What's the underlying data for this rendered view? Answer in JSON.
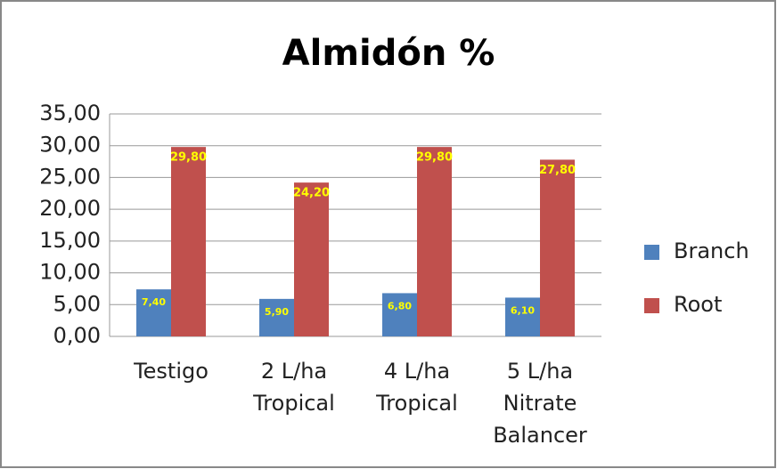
{
  "chart_data": {
    "type": "bar",
    "title": "Almidón %",
    "categories": [
      [
        "Testigo"
      ],
      [
        "2 L/ha",
        "Tropical"
      ],
      [
        "4 L/ha",
        "Tropical"
      ],
      [
        "5 L/ha",
        "Nitrate",
        "Balancer"
      ]
    ],
    "series": [
      {
        "name": "Branch",
        "color": "#4f81bd",
        "values": [
          7.4,
          5.9,
          6.8,
          6.1
        ],
        "value_labels": [
          "7,40",
          "5,90",
          "6,80",
          "6,10"
        ]
      },
      {
        "name": "Root",
        "color": "#c0504d",
        "values": [
          29.8,
          24.2,
          29.8,
          27.8
        ],
        "value_labels": [
          "29,80",
          "24,20",
          "29,80",
          "27,80"
        ]
      }
    ],
    "ylim": [
      0,
      35
    ],
    "yticks": [
      {
        "value": 0,
        "label": "0,00"
      },
      {
        "value": 5,
        "label": "5,00"
      },
      {
        "value": 10,
        "label": "10,00"
      },
      {
        "value": 15,
        "label": "15,00"
      },
      {
        "value": 20,
        "label": "20,00"
      },
      {
        "value": 25,
        "label": "25,00"
      },
      {
        "value": 30,
        "label": "30,00"
      },
      {
        "value": 35,
        "label": "35,00"
      }
    ],
    "grid": true,
    "legend": "right"
  }
}
